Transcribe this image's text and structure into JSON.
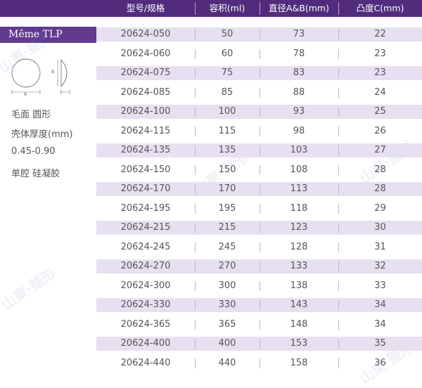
{
  "header": {
    "model": "型号/规格",
    "volume": "容积(ml)",
    "diameter": "直径A&B(mm)",
    "projection": "凸度C(mm)"
  },
  "product": {
    "name": "Même TLP",
    "diagram_labels": {
      "a": "A",
      "b": "B",
      "c": "C"
    },
    "specs": [
      "毛面 圆形",
      "壳体厚度(mm)",
      "0.45-0.90",
      "单腔 硅凝胶"
    ]
  },
  "rows": [
    {
      "model": "20624-050",
      "volume": "50",
      "diameter": "73",
      "projection": "22"
    },
    {
      "model": "20624-060",
      "volume": "60",
      "diameter": "78",
      "projection": "23"
    },
    {
      "model": "20624-075",
      "volume": "75",
      "diameter": "83",
      "projection": "23"
    },
    {
      "model": "20624-085",
      "volume": "85",
      "diameter": "88",
      "projection": "24"
    },
    {
      "model": "20624-100",
      "volume": "100",
      "diameter": "93",
      "projection": "25"
    },
    {
      "model": "20624-115",
      "volume": "115",
      "diameter": "98",
      "projection": "26"
    },
    {
      "model": "20624-135",
      "volume": "135",
      "diameter": "103",
      "projection": "27"
    },
    {
      "model": "20624-150",
      "volume": "150",
      "diameter": "108",
      "projection": "28"
    },
    {
      "model": "20624-170",
      "volume": "170",
      "diameter": "113",
      "projection": "28"
    },
    {
      "model": "20624-195",
      "volume": "195",
      "diameter": "118",
      "projection": "29"
    },
    {
      "model": "20624-215",
      "volume": "215",
      "diameter": "123",
      "projection": "30"
    },
    {
      "model": "20624-245",
      "volume": "245",
      "diameter": "128",
      "projection": "31"
    },
    {
      "model": "20624-270",
      "volume": "270",
      "diameter": "133",
      "projection": "32"
    },
    {
      "model": "20624-300",
      "volume": "300",
      "diameter": "138",
      "projection": "33"
    },
    {
      "model": "20624-330",
      "volume": "330",
      "diameter": "143",
      "projection": "34"
    },
    {
      "model": "20624-365",
      "volume": "365",
      "diameter": "148",
      "projection": "34"
    },
    {
      "model": "20624-400",
      "volume": "400",
      "diameter": "153",
      "projection": "35"
    },
    {
      "model": "20624-440",
      "volume": "440",
      "diameter": "158",
      "projection": "36"
    }
  ],
  "colors": {
    "header_bg": "#512c7c",
    "brand_bg": "#5f3a8d",
    "row_alt": "#e7e0f0"
  },
  "watermark": "山東·整形"
}
